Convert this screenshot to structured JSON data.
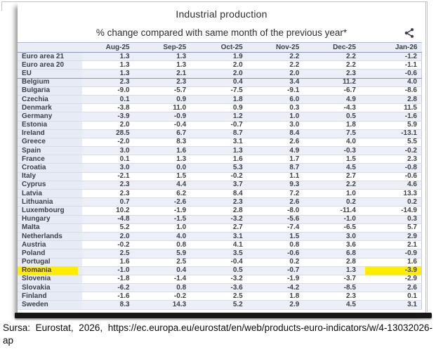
{
  "chart_data": {
    "type": "table",
    "title": "Industrial production",
    "subtitle": "% change compared with same month of the previous year*",
    "columns": [
      "Aug-25",
      "Sep-25",
      "Oct-25",
      "Nov-25",
      "Dec-25",
      "Jan-26"
    ],
    "separator_after": "EU",
    "highlight": {
      "row": "Romania",
      "column": "Jan-26",
      "color": "#ffec00"
    },
    "rows": [
      {
        "label": "Euro area 21",
        "values": [
          "1.3",
          "1.3",
          "1.9",
          "2.2",
          "2.2",
          "-1.2"
        ]
      },
      {
        "label": "Euro area 20",
        "values": [
          "1.3",
          "1.3",
          "2.0",
          "2.2",
          "2.2",
          "-1.1"
        ]
      },
      {
        "label": "EU",
        "values": [
          "1.3",
          "2.1",
          "2.0",
          "2.0",
          "2.3",
          "-0.6"
        ]
      },
      {
        "label": "Belgium",
        "values": [
          "2.3",
          "2.3",
          "0.4",
          "3.4",
          "11.2",
          "4.0"
        ]
      },
      {
        "label": "Bulgaria",
        "values": [
          "-9.0",
          "-5.7",
          "-7.5",
          "-9.1",
          "-6.7",
          "-8.6"
        ]
      },
      {
        "label": "Czechia",
        "values": [
          "0.1",
          "0.9",
          "1.8",
          "6.0",
          "4.9",
          "2.8"
        ]
      },
      {
        "label": "Denmark",
        "values": [
          "-3.8",
          "11.0",
          "0.9",
          "0.3",
          "-4.3",
          "11.5"
        ]
      },
      {
        "label": "Germany",
        "values": [
          "-3.9",
          "-0.9",
          "1.2",
          "1.0",
          "0.5",
          "-1.6"
        ]
      },
      {
        "label": "Estonia",
        "values": [
          "2.0",
          "-0.4",
          "-0.7",
          "3.0",
          "1.8",
          "5.9"
        ]
      },
      {
        "label": "Ireland",
        "values": [
          "28.5",
          "6.7",
          "8.7",
          "8.4",
          "7.5",
          "-13.1"
        ]
      },
      {
        "label": "Greece",
        "values": [
          "-2.0",
          "8.3",
          "3.1",
          "2.6",
          "4.0",
          "5.5"
        ]
      },
      {
        "label": "Spain",
        "values": [
          "3.0",
          "1.6",
          "1.3",
          "4.9",
          "-0.3",
          "-0.2"
        ]
      },
      {
        "label": "France",
        "values": [
          "0.1",
          "1.3",
          "1.6",
          "1.7",
          "1.5",
          "2.3"
        ]
      },
      {
        "label": "Croatia",
        "values": [
          "3.0",
          "0.0",
          "5.3",
          "8.7",
          "4.5",
          "-0.8"
        ]
      },
      {
        "label": "Italy",
        "values": [
          "-2.1",
          "1.5",
          "-0.2",
          "1.1",
          "2.7",
          "-0.6"
        ]
      },
      {
        "label": "Cyprus",
        "values": [
          "2.3",
          "4.4",
          "3.7",
          "9.3",
          "2.2",
          "4.6"
        ]
      },
      {
        "label": "Latvia",
        "values": [
          "2.3",
          "6.2",
          "8.4",
          "7.2",
          "1.0",
          "13.3"
        ]
      },
      {
        "label": "Lithuania",
        "values": [
          "0.7",
          "-2.6",
          "2.3",
          "2.6",
          "0.2",
          "0.2"
        ]
      },
      {
        "label": "Luxembourg",
        "values": [
          "10.2",
          "-1.9",
          "2.8",
          "-8.0",
          "-11.4",
          "-14.9"
        ]
      },
      {
        "label": "Hungary",
        "values": [
          "-4.8",
          "-1.5",
          "-3.2",
          "-5.6",
          "-1.0",
          "0.3"
        ]
      },
      {
        "label": "Malta",
        "values": [
          "5.2",
          "1.0",
          "2.7",
          "-7.4",
          "-6.5",
          "5.7"
        ]
      },
      {
        "label": "Netherlands",
        "values": [
          "2.0",
          "4.0",
          "3.1",
          "1.5",
          "3.0",
          "2.9"
        ]
      },
      {
        "label": "Austria",
        "values": [
          "-0.2",
          "0.8",
          "4.1",
          "0.8",
          "3.6",
          "2.1"
        ]
      },
      {
        "label": "Poland",
        "values": [
          "2.5",
          "5.9",
          "3.5",
          "-0.6",
          "6.8",
          "-0.9"
        ]
      },
      {
        "label": "Portugal",
        "values": [
          "1.6",
          "2.5",
          "-0.4",
          "0.2",
          "2.8",
          "1.6"
        ]
      },
      {
        "label": "Romania",
        "values": [
          "-1.0",
          "0.4",
          "0.5",
          "-0.7",
          "1.3",
          "-3.9"
        ]
      },
      {
        "label": "Slovenia",
        "values": [
          "-1.8",
          "-1.4",
          "-3.2",
          "-1.9",
          "-3.7",
          "-2.9"
        ]
      },
      {
        "label": "Slovakia",
        "values": [
          "-6.2",
          "0.8",
          "-3.6",
          "-4.2",
          "-8.5",
          "2.6"
        ]
      },
      {
        "label": "Finland",
        "values": [
          "-1.6",
          "-0.2",
          "2.5",
          "1.8",
          "2.3",
          "0.1"
        ]
      },
      {
        "label": "Sweden",
        "values": [
          "8.3",
          "14.3",
          "5.2",
          "2.9",
          "4.5",
          "3.1"
        ]
      }
    ]
  },
  "source": "Sursa: Eurostat, 2026, https://ec.europa.eu/eurostat/en/web/products-euro-indicators/w/4-13032026-ap"
}
